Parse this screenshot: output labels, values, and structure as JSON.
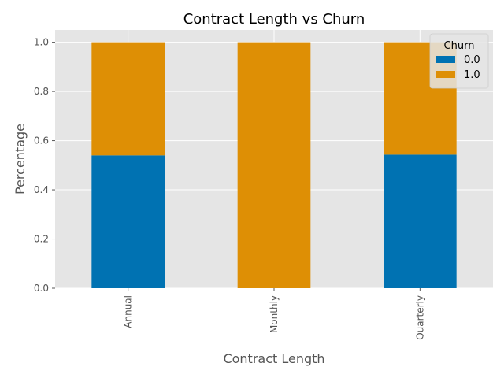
{
  "chart_data": {
    "type": "bar",
    "stacked": true,
    "title": "Contract Length vs Churn",
    "xlabel": "Contract Length",
    "ylabel": "Percentage",
    "categories": [
      "Annual",
      "Monthly",
      "Quarterly"
    ],
    "ylim": [
      0,
      1.05
    ],
    "yticks": [
      "0.0",
      "0.2",
      "0.4",
      "0.6",
      "0.8",
      "1.0"
    ],
    "legend": {
      "title": "Churn",
      "placement": "top-right"
    },
    "grid": true,
    "series": [
      {
        "name": "0.0",
        "color": "#0072b2",
        "values": [
          0.54,
          0.0,
          0.543
        ]
      },
      {
        "name": "1.0",
        "color": "#de8f05",
        "values": [
          0.46,
          1.0,
          0.457
        ]
      }
    ]
  }
}
